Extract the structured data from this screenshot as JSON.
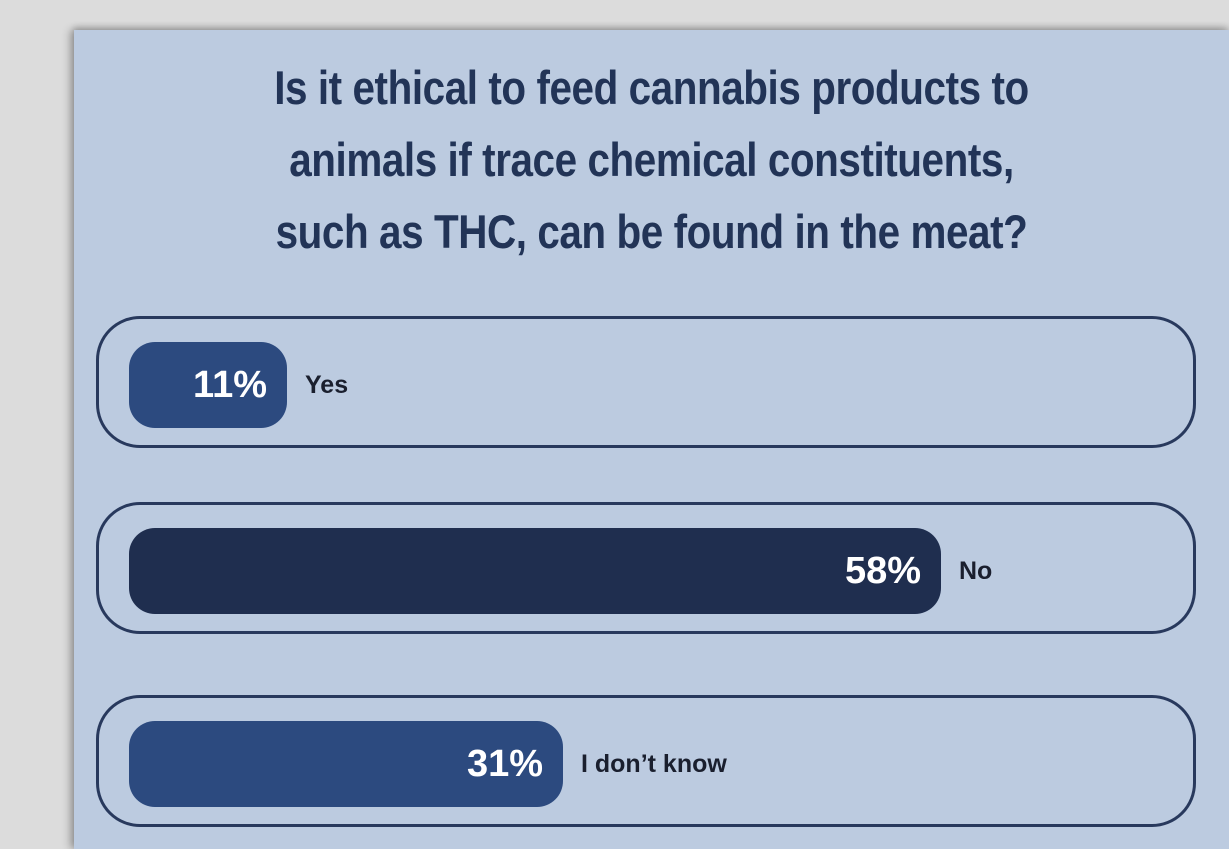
{
  "poll": {
    "question_lines": [
      "Is it ethical to feed cannabis products to",
      "animals if trace chemical constituents,",
      "such as THC, can be found in the meat?"
    ]
  },
  "colors": {
    "page_background": "#dcdcdc",
    "panel_background": "#bccbe0",
    "title_text": "#223457",
    "row_border": "#28395d",
    "label_text": "#1a1f2e"
  },
  "chart_data": {
    "type": "bar",
    "orientation": "horizontal",
    "title": "Is it ethical to feed cannabis products to animals if trace chemical constituents, such as THC, can be found in the meat?",
    "categories": [
      "Yes",
      "No",
      "I don’t know"
    ],
    "values": [
      11,
      58,
      31
    ],
    "value_labels": [
      "11%",
      "58%",
      "31%"
    ],
    "bar_colors": [
      "#2c4a7f",
      "#1f2e4f",
      "#2c4a7f"
    ],
    "unit": "%",
    "xlim": [
      0,
      100
    ],
    "grid": false,
    "legend": "none"
  }
}
